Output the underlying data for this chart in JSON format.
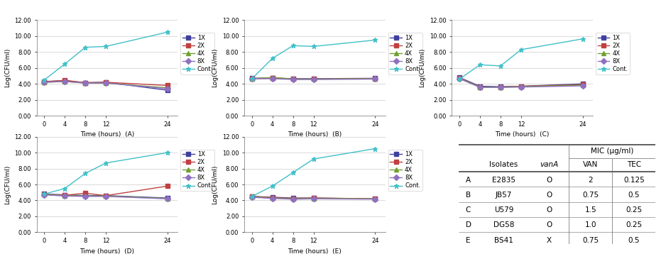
{
  "time": [
    0,
    4,
    8,
    12,
    24
  ],
  "panels": [
    {
      "label": "A",
      "series": {
        "1X": [
          4.3,
          4.4,
          4.15,
          4.2,
          3.2
        ],
        "2X": [
          4.25,
          4.45,
          4.15,
          4.2,
          3.8
        ],
        "4X": [
          4.2,
          4.3,
          4.1,
          4.1,
          3.5
        ],
        "8X": [
          4.2,
          4.3,
          4.1,
          4.1,
          3.4
        ],
        "Cont.": [
          4.5,
          6.5,
          8.6,
          8.7,
          10.5
        ]
      }
    },
    {
      "label": "B",
      "series": {
        "1X": [
          4.7,
          4.75,
          4.65,
          4.65,
          4.7
        ],
        "2X": [
          4.65,
          4.7,
          4.6,
          4.6,
          4.65
        ],
        "4X": [
          4.65,
          4.8,
          4.6,
          4.6,
          4.65
        ],
        "8X": [
          4.65,
          4.65,
          4.55,
          4.55,
          4.6
        ],
        "Cont.": [
          4.65,
          7.2,
          8.8,
          8.7,
          9.5
        ]
      }
    },
    {
      "label": "C",
      "series": {
        "1X": [
          4.8,
          3.7,
          3.65,
          3.7,
          4.0
        ],
        "2X": [
          4.75,
          3.6,
          3.6,
          3.7,
          3.9
        ],
        "4X": [
          4.7,
          3.6,
          3.6,
          3.65,
          3.85
        ],
        "8X": [
          4.65,
          3.55,
          3.55,
          3.6,
          3.75
        ],
        "Cont.": [
          4.6,
          6.4,
          6.25,
          8.3,
          9.65
        ]
      }
    },
    {
      "label": "D",
      "series": {
        "1X": [
          4.8,
          4.7,
          4.6,
          4.6,
          4.3
        ],
        "2X": [
          4.75,
          4.65,
          4.9,
          4.6,
          5.8
        ],
        "4X": [
          4.75,
          4.6,
          4.55,
          4.55,
          4.25
        ],
        "8X": [
          4.7,
          4.55,
          4.5,
          4.5,
          4.2
        ],
        "Cont.": [
          4.8,
          5.5,
          7.4,
          8.7,
          10.0
        ]
      }
    },
    {
      "label": "E",
      "series": {
        "1X": [
          4.5,
          4.4,
          4.3,
          4.3,
          4.2
        ],
        "2X": [
          4.5,
          4.35,
          4.25,
          4.3,
          4.2
        ],
        "4X": [
          4.45,
          4.3,
          4.2,
          4.25,
          4.2
        ],
        "8X": [
          4.4,
          4.25,
          4.15,
          4.2,
          4.15
        ],
        "Cont.": [
          4.5,
          5.8,
          7.5,
          9.2,
          10.5
        ]
      }
    }
  ],
  "series_colors": {
    "1X": "#4040a0",
    "2X": "#c04040",
    "4X": "#70a030",
    "8X": "#9070c0",
    "Cont.": "#40c0c8"
  },
  "series_markers": {
    "1X": "s",
    "2X": "s",
    "4X": "^",
    "8X": "D",
    "Cont.": "*"
  },
  "ylabel": "Log(CFU/ml)",
  "xlabel": "Time (hours)",
  "ylim": [
    0.0,
    12.0
  ],
  "ytick_labels": [
    "0.00",
    "2.00",
    "4.00",
    "6.00",
    "8.00",
    "10.00",
    "12.00"
  ],
  "ytick_vals": [
    0.0,
    2.0,
    4.0,
    6.0,
    8.0,
    10.0,
    12.0
  ],
  "xticks": [
    0,
    4,
    8,
    12,
    24
  ],
  "table_rows": [
    [
      "A",
      "E2835",
      "O",
      "2",
      "0.125"
    ],
    [
      "B",
      "JB57",
      "O",
      "0.75",
      "0.5"
    ],
    [
      "C",
      "U579",
      "O",
      "1.5",
      "0.25"
    ],
    [
      "D",
      "DG58",
      "O",
      "1.0",
      "0.25"
    ],
    [
      "E",
      "BS41",
      "X",
      "0.75",
      "0.5"
    ]
  ]
}
